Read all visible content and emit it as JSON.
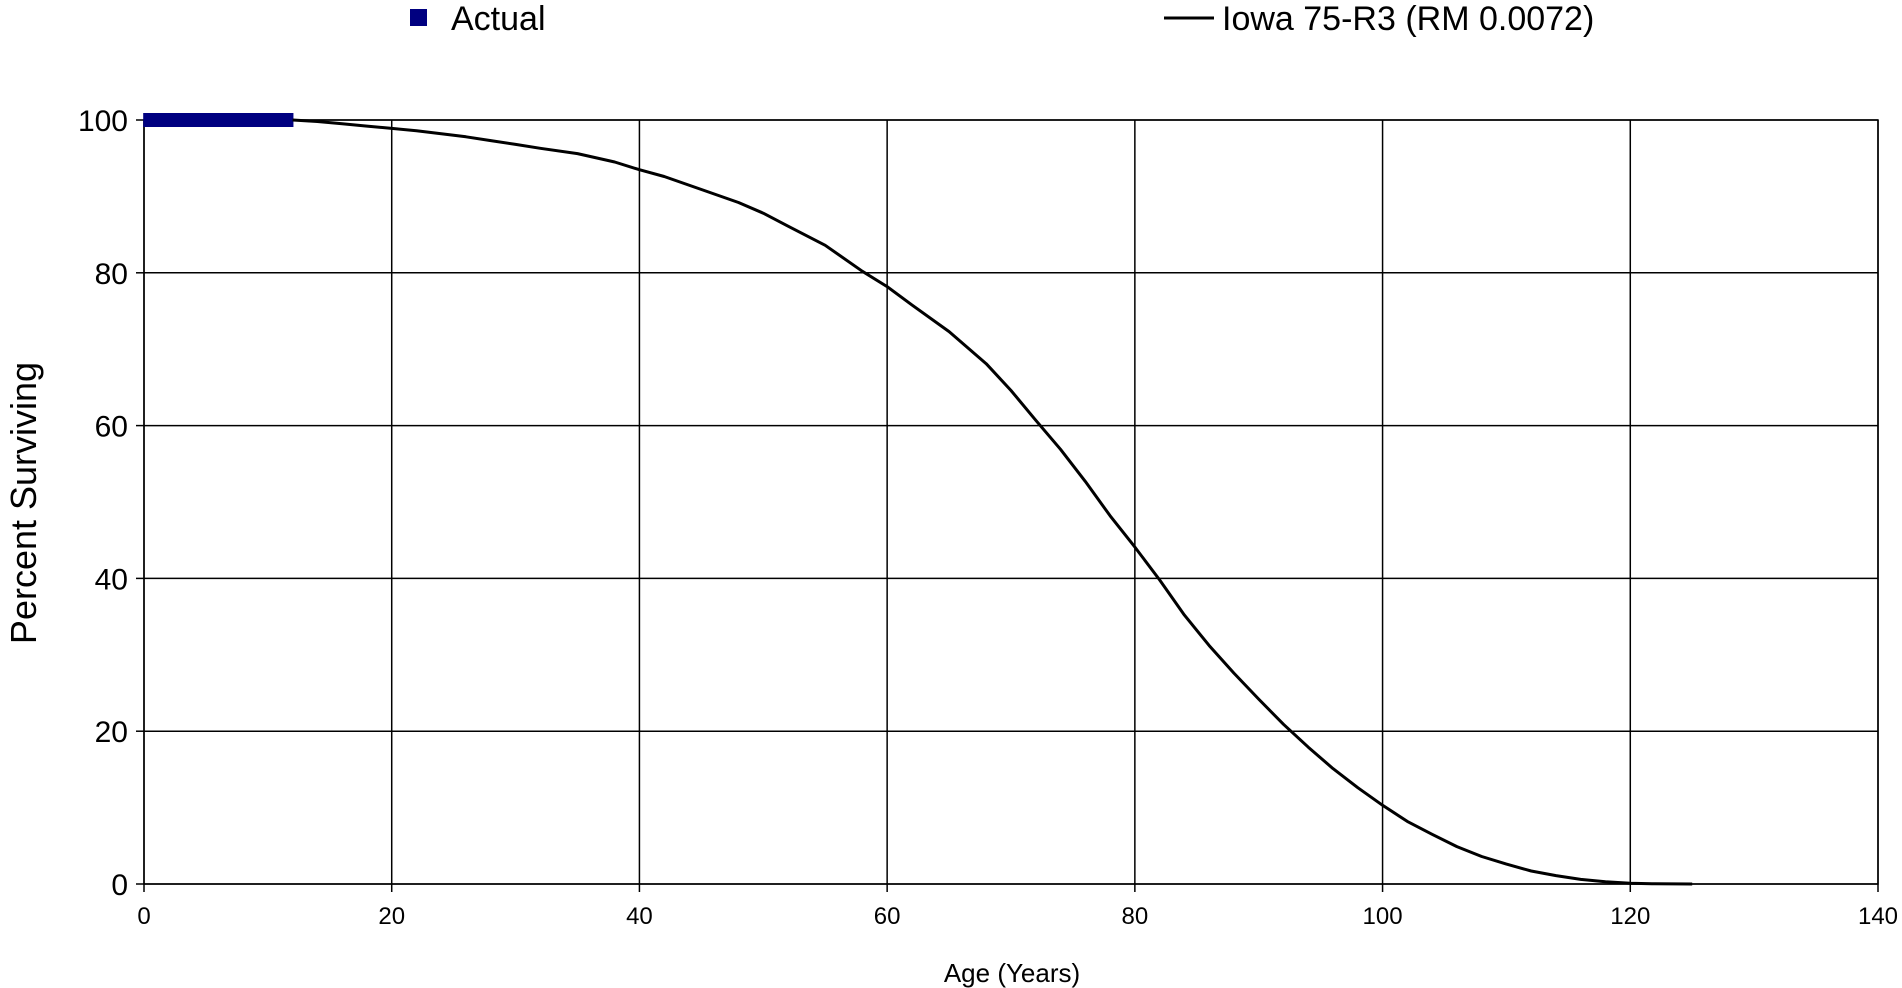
{
  "chart_data": {
    "type": "line",
    "xlabel": "Age (Years)",
    "ylabel": "Percent Surviving",
    "xlim": [
      0,
      140
    ],
    "ylim": [
      0,
      100
    ],
    "x_ticks": [
      0,
      20,
      40,
      60,
      80,
      100,
      120,
      140
    ],
    "y_ticks": [
      0,
      20,
      40,
      60,
      80,
      100
    ],
    "grid": true,
    "legend_position": "top",
    "series": [
      {
        "name": "Actual",
        "style": "markers",
        "marker": "square",
        "color": "#000080",
        "points": [
          [
            0.5,
            100
          ],
          [
            1.5,
            100
          ],
          [
            2.5,
            100
          ],
          [
            3.5,
            100
          ],
          [
            4.5,
            100
          ],
          [
            5.5,
            100
          ],
          [
            6.5,
            100
          ],
          [
            7.5,
            100
          ],
          [
            8.5,
            100
          ],
          [
            9.5,
            100
          ],
          [
            10.5,
            100
          ],
          [
            11.5,
            100
          ]
        ]
      },
      {
        "name": "Iowa 75-R3 (RM 0.0072)",
        "style": "line",
        "color": "#000000",
        "points": [
          [
            12,
            100
          ],
          [
            14,
            99.8
          ],
          [
            16,
            99.5
          ],
          [
            18,
            99.2
          ],
          [
            20,
            98.9
          ],
          [
            22,
            98.6
          ],
          [
            24,
            98.2
          ],
          [
            26,
            97.8
          ],
          [
            28,
            97.3
          ],
          [
            30,
            96.8
          ],
          [
            32,
            96.3
          ],
          [
            35,
            95.6
          ],
          [
            38,
            94.5
          ],
          [
            40,
            93.5
          ],
          [
            42,
            92.6
          ],
          [
            45,
            90.9
          ],
          [
            48,
            89.2
          ],
          [
            50,
            87.8
          ],
          [
            52,
            86.1
          ],
          [
            55,
            83.6
          ],
          [
            58,
            80.2
          ],
          [
            60,
            78.2
          ],
          [
            62,
            75.8
          ],
          [
            65,
            72.3
          ],
          [
            68,
            68.1
          ],
          [
            70,
            64.6
          ],
          [
            72,
            60.7
          ],
          [
            74,
            56.9
          ],
          [
            76,
            52.7
          ],
          [
            78,
            48.2
          ],
          [
            80,
            44.1
          ],
          [
            82,
            39.8
          ],
          [
            84,
            35.2
          ],
          [
            86,
            31.2
          ],
          [
            88,
            27.6
          ],
          [
            90,
            24.2
          ],
          [
            92,
            20.9
          ],
          [
            94,
            17.9
          ],
          [
            96,
            15.1
          ],
          [
            98,
            12.6
          ],
          [
            100,
            10.3
          ],
          [
            102,
            8.2
          ],
          [
            104,
            6.5
          ],
          [
            106,
            4.9
          ],
          [
            108,
            3.6
          ],
          [
            110,
            2.6
          ],
          [
            112,
            1.7
          ],
          [
            114,
            1.1
          ],
          [
            116,
            0.6
          ],
          [
            118,
            0.3
          ],
          [
            120,
            0.1
          ],
          [
            122,
            0.02
          ],
          [
            125,
            0
          ]
        ]
      }
    ]
  }
}
